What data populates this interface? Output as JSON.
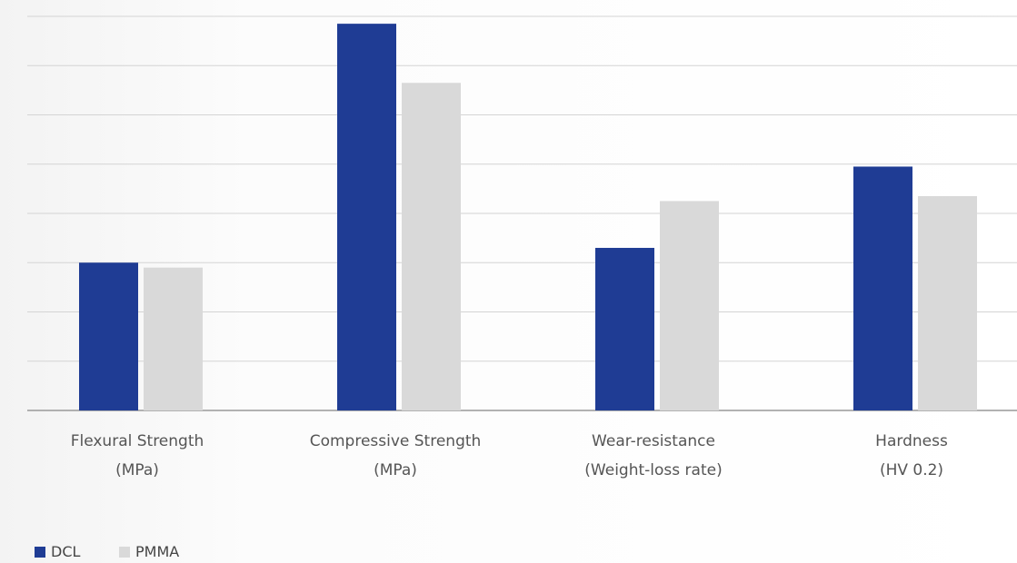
{
  "chart_data": {
    "type": "bar",
    "categories": [
      "Flexural Strength\n(MPa)",
      "Compressive Strength\n(MPa)",
      "Wear-resistance\n(Weight-loss rate)",
      "Hardness\n(HV 0.2)"
    ],
    "series": [
      {
        "name": "DCL",
        "color": "#1f3c94",
        "values": [
          3.0,
          7.85,
          3.3,
          4.95
        ]
      },
      {
        "name": "PMMA",
        "color": "#d9d9d9",
        "values": [
          2.9,
          6.65,
          4.25,
          4.35
        ]
      }
    ],
    "ylim": [
      0,
      8
    ],
    "yticks": [
      0,
      1,
      2,
      3,
      4,
      5,
      6,
      7,
      8
    ],
    "grid": true
  }
}
